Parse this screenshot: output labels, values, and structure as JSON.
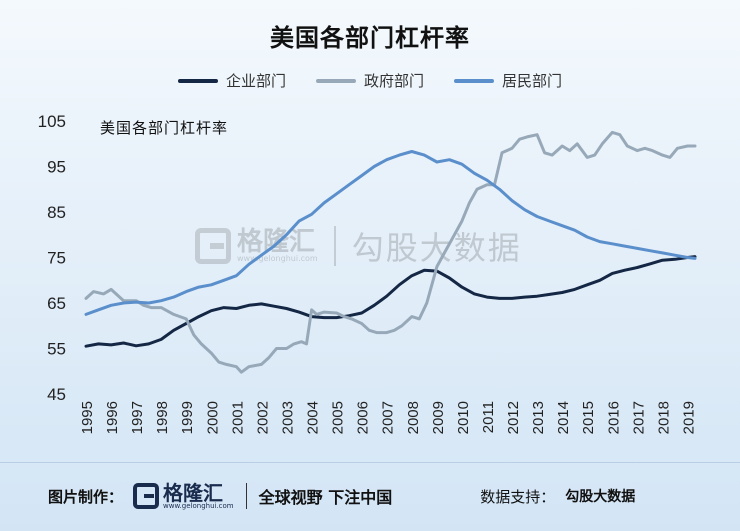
{
  "chart_data": {
    "type": "line",
    "title": "美国各部门杠杆率",
    "inner_label": "美国各部门杠杆率",
    "xlabel": "",
    "ylabel": "",
    "ylim": [
      45,
      105
    ],
    "yticks": [
      45,
      55,
      65,
      75,
      85,
      95,
      105
    ],
    "xlim": [
      1995,
      2019.5
    ],
    "xticks": [
      1995,
      1996,
      1997,
      1998,
      1999,
      2000,
      2001,
      2002,
      2003,
      2004,
      2005,
      2006,
      2007,
      2008,
      2009,
      2010,
      2011,
      2012,
      2013,
      2014,
      2015,
      2016,
      2017,
      2018,
      2019
    ],
    "grid": false,
    "legend_position": "top",
    "series": [
      {
        "name": "企业部门",
        "color": "#142745",
        "points": [
          [
            1995.0,
            55.5
          ],
          [
            1995.5,
            56.0
          ],
          [
            1996.0,
            55.8
          ],
          [
            1996.5,
            56.2
          ],
          [
            1997.0,
            55.6
          ],
          [
            1997.5,
            56.0
          ],
          [
            1998.0,
            57.0
          ],
          [
            1998.5,
            59.0
          ],
          [
            1999.0,
            60.5
          ],
          [
            1999.5,
            62.0
          ],
          [
            2000.0,
            63.3
          ],
          [
            2000.5,
            64.0
          ],
          [
            2001.0,
            63.8
          ],
          [
            2001.5,
            64.5
          ],
          [
            2002.0,
            64.8
          ],
          [
            2002.5,
            64.3
          ],
          [
            2003.0,
            63.8
          ],
          [
            2003.5,
            63.0
          ],
          [
            2004.0,
            62.0
          ],
          [
            2004.5,
            61.8
          ],
          [
            2005.0,
            61.8
          ],
          [
            2005.5,
            62.2
          ],
          [
            2006.0,
            62.8
          ],
          [
            2006.5,
            64.5
          ],
          [
            2007.0,
            66.5
          ],
          [
            2007.5,
            69.0
          ],
          [
            2008.0,
            71.0
          ],
          [
            2008.5,
            72.2
          ],
          [
            2009.0,
            72.0
          ],
          [
            2009.5,
            70.5
          ],
          [
            2010.0,
            68.5
          ],
          [
            2010.5,
            67.0
          ],
          [
            2011.0,
            66.3
          ],
          [
            2011.5,
            66.0
          ],
          [
            2012.0,
            66.0
          ],
          [
            2012.5,
            66.3
          ],
          [
            2013.0,
            66.5
          ],
          [
            2013.5,
            66.9
          ],
          [
            2014.0,
            67.3
          ],
          [
            2014.5,
            68.0
          ],
          [
            2015.0,
            69.0
          ],
          [
            2015.5,
            70.0
          ],
          [
            2016.0,
            71.5
          ],
          [
            2016.5,
            72.2
          ],
          [
            2017.0,
            72.8
          ],
          [
            2017.5,
            73.6
          ],
          [
            2018.0,
            74.4
          ],
          [
            2018.5,
            74.6
          ],
          [
            2019.0,
            75.0
          ],
          [
            2019.3,
            75.2
          ]
        ]
      },
      {
        "name": "政府部门",
        "color": "#97a9b8",
        "points": [
          [
            1995.0,
            66.0
          ],
          [
            1995.3,
            67.5
          ],
          [
            1995.7,
            67.0
          ],
          [
            1996.0,
            68.0
          ],
          [
            1996.5,
            65.5
          ],
          [
            1997.0,
            65.5
          ],
          [
            1997.3,
            64.5
          ],
          [
            1997.6,
            64.0
          ],
          [
            1998.0,
            64.0
          ],
          [
            1998.5,
            62.5
          ],
          [
            1999.0,
            61.5
          ],
          [
            1999.3,
            58.0
          ],
          [
            1999.6,
            56.0
          ],
          [
            2000.0,
            54.0
          ],
          [
            2000.3,
            52.0
          ],
          [
            2000.6,
            51.5
          ],
          [
            2001.0,
            51.0
          ],
          [
            2001.2,
            49.8
          ],
          [
            2001.5,
            51.0
          ],
          [
            2002.0,
            51.5
          ],
          [
            2002.3,
            53.0
          ],
          [
            2002.6,
            55.0
          ],
          [
            2003.0,
            55.0
          ],
          [
            2003.3,
            56.0
          ],
          [
            2003.6,
            56.5
          ],
          [
            2003.8,
            56.0
          ],
          [
            2004.0,
            63.5
          ],
          [
            2004.2,
            62.5
          ],
          [
            2004.5,
            63.0
          ],
          [
            2005.0,
            62.8
          ],
          [
            2005.3,
            62.0
          ],
          [
            2005.6,
            61.5
          ],
          [
            2006.0,
            60.5
          ],
          [
            2006.3,
            59.0
          ],
          [
            2006.6,
            58.5
          ],
          [
            2007.0,
            58.5
          ],
          [
            2007.3,
            59.0
          ],
          [
            2007.6,
            60.0
          ],
          [
            2008.0,
            62.0
          ],
          [
            2008.3,
            61.5
          ],
          [
            2008.6,
            65.0
          ],
          [
            2009.0,
            73.0
          ],
          [
            2009.3,
            76.0
          ],
          [
            2009.6,
            79.0
          ],
          [
            2010.0,
            83.0
          ],
          [
            2010.3,
            87.0
          ],
          [
            2010.6,
            90.0
          ],
          [
            2011.0,
            91.0
          ],
          [
            2011.3,
            91.0
          ],
          [
            2011.6,
            98.0
          ],
          [
            2012.0,
            99.0
          ],
          [
            2012.3,
            101.0
          ],
          [
            2012.6,
            101.5
          ],
          [
            2013.0,
            102.0
          ],
          [
            2013.3,
            98.0
          ],
          [
            2013.6,
            97.5
          ],
          [
            2014.0,
            99.5
          ],
          [
            2014.3,
            98.5
          ],
          [
            2014.6,
            100.0
          ],
          [
            2015.0,
            97.0
          ],
          [
            2015.3,
            97.5
          ],
          [
            2015.6,
            100.0
          ],
          [
            2016.0,
            102.5
          ],
          [
            2016.3,
            102.0
          ],
          [
            2016.6,
            99.5
          ],
          [
            2017.0,
            98.5
          ],
          [
            2017.3,
            99.0
          ],
          [
            2017.6,
            98.5
          ],
          [
            2018.0,
            97.5
          ],
          [
            2018.3,
            97.0
          ],
          [
            2018.6,
            99.0
          ],
          [
            2019.0,
            99.5
          ],
          [
            2019.3,
            99.5
          ]
        ]
      },
      {
        "name": "居民部门",
        "color": "#5a8fcc",
        "points": [
          [
            1995.0,
            62.5
          ],
          [
            1995.5,
            63.5
          ],
          [
            1996.0,
            64.5
          ],
          [
            1996.5,
            65.0
          ],
          [
            1997.0,
            65.2
          ],
          [
            1997.5,
            65.0
          ],
          [
            1998.0,
            65.5
          ],
          [
            1998.5,
            66.3
          ],
          [
            1999.0,
            67.5
          ],
          [
            1999.5,
            68.5
          ],
          [
            2000.0,
            69.0
          ],
          [
            2000.5,
            70.0
          ],
          [
            2001.0,
            71.0
          ],
          [
            2001.5,
            73.5
          ],
          [
            2002.0,
            75.5
          ],
          [
            2002.5,
            77.5
          ],
          [
            2003.0,
            80.0
          ],
          [
            2003.5,
            83.0
          ],
          [
            2004.0,
            84.5
          ],
          [
            2004.5,
            87.0
          ],
          [
            2005.0,
            89.0
          ],
          [
            2005.5,
            91.0
          ],
          [
            2006.0,
            93.0
          ],
          [
            2006.5,
            95.0
          ],
          [
            2007.0,
            96.5
          ],
          [
            2007.5,
            97.5
          ],
          [
            2008.0,
            98.3
          ],
          [
            2008.5,
            97.5
          ],
          [
            2009.0,
            96.0
          ],
          [
            2009.5,
            96.5
          ],
          [
            2010.0,
            95.5
          ],
          [
            2010.5,
            93.5
          ],
          [
            2011.0,
            92.0
          ],
          [
            2011.5,
            90.0
          ],
          [
            2012.0,
            87.5
          ],
          [
            2012.5,
            85.5
          ],
          [
            2013.0,
            84.0
          ],
          [
            2013.5,
            83.0
          ],
          [
            2014.0,
            82.0
          ],
          [
            2014.5,
            81.0
          ],
          [
            2015.0,
            79.5
          ],
          [
            2015.5,
            78.5
          ],
          [
            2016.0,
            78.0
          ],
          [
            2016.5,
            77.5
          ],
          [
            2017.0,
            77.0
          ],
          [
            2017.5,
            76.5
          ],
          [
            2018.0,
            76.0
          ],
          [
            2018.5,
            75.5
          ],
          [
            2019.0,
            75.0
          ],
          [
            2019.3,
            74.8
          ]
        ]
      }
    ]
  },
  "watermark": {
    "brand": "格隆汇",
    "url": "www.gelonghui.com",
    "text": "勾股大数据"
  },
  "footer": {
    "made_by_label": "图片制作：",
    "brand": "格隆汇",
    "brand_url": "www.gelonghui.com",
    "slogan": "全球视野 下注中国",
    "support_label": "数据支持：",
    "support_source": "勾股大数据"
  }
}
